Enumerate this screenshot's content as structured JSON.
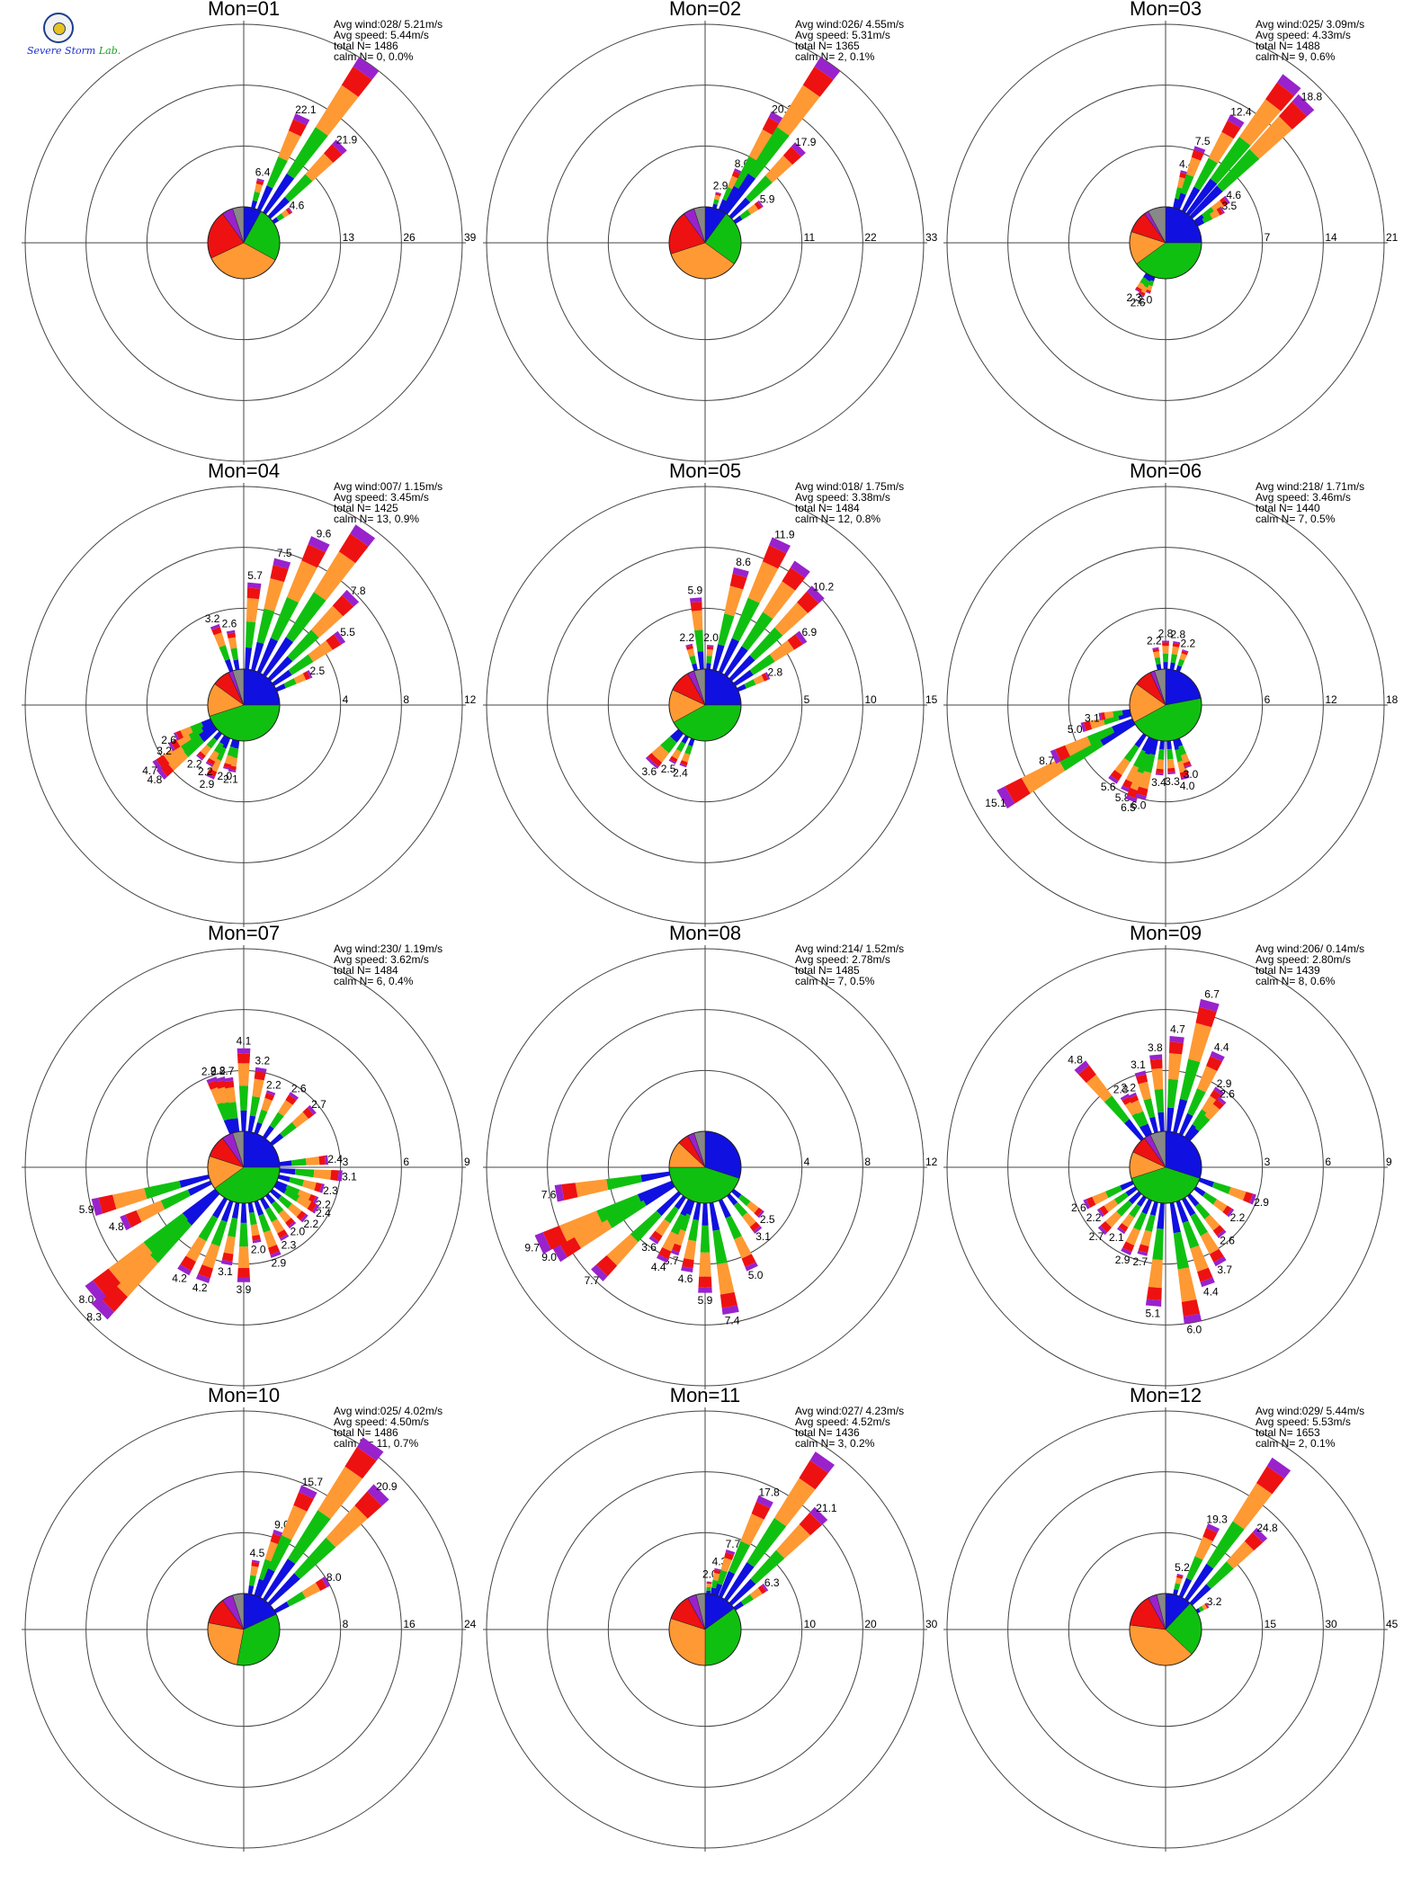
{
  "logo": {
    "text_part1": "Severe",
    "text_part2": "Storm",
    "text_part3": "Lab."
  },
  "colors": {
    "ring": "#444444",
    "axis": "#444444",
    "speed_bins": [
      "#1010e0",
      "#10c010",
      "#ff9933",
      "#ee1111",
      "#9922cc",
      "#888888"
    ]
  },
  "chart_data": [
    {
      "type": "wind_rose",
      "title": "Mon=01",
      "info": [
        "Avg wind:028/ 5.21m/s",
        "Avg speed: 5.44m/s",
        "total N=       1486",
        "calm N=     0,   0.0%"
      ],
      "rings": [
        13,
        26,
        39
      ],
      "bars": [
        [
          15,
          6.4
        ],
        [
          25,
          22.1
        ],
        [
          35,
          39.0
        ],
        [
          45,
          21.9
        ],
        [
          55,
          4.6
        ]
      ],
      "labeled_bins": [
        15,
        25,
        45,
        55
      ],
      "pie": [
        [
          "#1010e0",
          8
        ],
        [
          "#10c010",
          25
        ],
        [
          "#ff9933",
          35
        ],
        [
          "#ee1111",
          22
        ],
        [
          "#9922cc",
          5
        ],
        [
          "#888888",
          5
        ]
      ]
    },
    {
      "type": "wind_rose",
      "title": "Mon=02",
      "info": [
        "Avg wind:026/ 4.55m/s",
        "Avg speed: 5.31m/s",
        "total N=       1365",
        "calm N=     2,   0.1%"
      ],
      "rings": [
        11,
        22,
        33
      ],
      "bars": [
        [
          15,
          2.9
        ],
        [
          25,
          8.0
        ],
        [
          30,
          20.1
        ],
        [
          35,
          33.0
        ],
        [
          45,
          17.9
        ],
        [
          55,
          5.9
        ]
      ],
      "labeled_bins": [
        15,
        25,
        30,
        45,
        55
      ],
      "pie": [
        [
          "#1010e0",
          10
        ],
        [
          "#10c010",
          25
        ],
        [
          "#ff9933",
          35
        ],
        [
          "#ee1111",
          20
        ],
        [
          "#9922cc",
          5
        ],
        [
          "#888888",
          5
        ]
      ]
    },
    {
      "type": "wind_rose",
      "title": "Mon=03",
      "info": [
        "Avg wind:025/ 3.09m/s",
        "Avg speed: 4.33m/s",
        "total N=       1488",
        "calm N=     9,   0.6%"
      ],
      "rings": [
        7,
        14,
        21
      ],
      "bars": [
        [
          15,
          4.4
        ],
        [
          20,
          7.5
        ],
        [
          30,
          12.4
        ],
        [
          38,
          19.5
        ],
        [
          45,
          18.8
        ],
        [
          55,
          4.6
        ],
        [
          60,
          3.5
        ],
        [
          200,
          2.0
        ],
        [
          205,
          2.6
        ],
        [
          210,
          2.3
        ]
      ],
      "labeled_bins": [
        15,
        20,
        30,
        45,
        55,
        60,
        200,
        205,
        210
      ],
      "pie": [
        [
          "#1010e0",
          25
        ],
        [
          "#10c010",
          40
        ],
        [
          "#ff9933",
          15
        ],
        [
          "#ee1111",
          10
        ],
        [
          "#9922cc",
          2
        ],
        [
          "#888888",
          8
        ]
      ]
    },
    {
      "type": "wind_rose",
      "title": "Mon=04",
      "info": [
        "Avg wind:007/ 1.15m/s",
        "Avg speed: 3.45m/s",
        "total N=       1425",
        "calm N=    13,   0.9%"
      ],
      "rings": [
        4,
        8,
        12
      ],
      "bars": [
        [
          340,
          3.2
        ],
        [
          350,
          2.6
        ],
        [
          5,
          5.7
        ],
        [
          15,
          7.5
        ],
        [
          25,
          9.6
        ],
        [
          35,
          11.6
        ],
        [
          45,
          7.8
        ],
        [
          55,
          5.5
        ],
        [
          65,
          2.5
        ],
        [
          190,
          2.1
        ],
        [
          195,
          2.0
        ],
        [
          205,
          2.9
        ],
        [
          210,
          2.2
        ],
        [
          220,
          2.2
        ],
        [
          230,
          4.8
        ],
        [
          235,
          4.7
        ],
        [
          240,
          3.2
        ],
        [
          245,
          2.6
        ]
      ],
      "labeled_bins": [
        340,
        350,
        5,
        15,
        25,
        45,
        55,
        65,
        190,
        195,
        205,
        210,
        220,
        230,
        235,
        240,
        245
      ],
      "pie": [
        [
          "#1010e0",
          25
        ],
        [
          "#10c010",
          45
        ],
        [
          "#ff9933",
          15
        ],
        [
          "#ee1111",
          8
        ],
        [
          "#9922cc",
          2
        ],
        [
          "#888888",
          5
        ]
      ]
    },
    {
      "type": "wind_rose",
      "title": "Mon=05",
      "info": [
        "Avg wind:018/ 1.75m/s",
        "Avg speed: 3.38m/s",
        "total N=       1484",
        "calm N=    12,   0.8%"
      ],
      "rings": [
        5,
        10,
        15
      ],
      "bars": [
        [
          345,
          2.2
        ],
        [
          355,
          5.9
        ],
        [
          5,
          2.0
        ],
        [
          15,
          8.6
        ],
        [
          25,
          11.9
        ],
        [
          35,
          11.0
        ],
        [
          45,
          10.2
        ],
        [
          55,
          6.9
        ],
        [
          65,
          2.8
        ],
        [
          200,
          2.4
        ],
        [
          210,
          2.5
        ],
        [
          220,
          3.6
        ],
        [
          225,
          3.6
        ]
      ],
      "labeled_bins": [
        345,
        355,
        5,
        15,
        25,
        45,
        55,
        65,
        200,
        210,
        220
      ],
      "pie": [
        [
          "#1010e0",
          25
        ],
        [
          "#10c010",
          42
        ],
        [
          "#ff9933",
          15
        ],
        [
          "#ee1111",
          10
        ],
        [
          "#9922cc",
          3
        ],
        [
          "#888888",
          5
        ]
      ]
    },
    {
      "type": "wind_rose",
      "title": "Mon=06",
      "info": [
        "Avg wind:218/ 1.71m/s",
        "Avg speed: 3.46m/s",
        "total N=       1440",
        "calm N=     7,   0.5%"
      ],
      "rings": [
        6,
        12,
        18
      ],
      "bars": [
        [
          350,
          2.2
        ],
        [
          0,
          2.8
        ],
        [
          10,
          2.8
        ],
        [
          20,
          2.2
        ],
        [
          240,
          15.1
        ],
        [
          245,
          8.7
        ],
        [
          255,
          5.0
        ],
        [
          260,
          3.1
        ],
        [
          215,
          5.6
        ],
        [
          205,
          5.8
        ],
        [
          200,
          6.5
        ],
        [
          195,
          6.0
        ],
        [
          185,
          3.4
        ],
        [
          175,
          3.3
        ],
        [
          165,
          4.0
        ],
        [
          160,
          3.0
        ]
      ],
      "labeled_bins": [
        350,
        0,
        10,
        20,
        240,
        245,
        255,
        260,
        215,
        205,
        200,
        195,
        185,
        175,
        165,
        160
      ],
      "pie": [
        [
          "#1010e0",
          22
        ],
        [
          "#10c010",
          45
        ],
        [
          "#ff9933",
          18
        ],
        [
          "#ee1111",
          8
        ],
        [
          "#9922cc",
          2
        ],
        [
          "#888888",
          5
        ]
      ]
    },
    {
      "type": "wind_rose",
      "title": "Mon=07",
      "info": [
        "Avg wind:230/ 1.19m/s",
        "Avg speed: 3.62m/s",
        "total N=       1484",
        "calm N=     6,   0.4%"
      ],
      "rings": [
        3,
        6,
        9
      ],
      "bars": [
        [
          340,
          2.9
        ],
        [
          345,
          2.8
        ],
        [
          350,
          2.7
        ],
        [
          0,
          4.1
        ],
        [
          10,
          3.2
        ],
        [
          20,
          2.2
        ],
        [
          35,
          2.6
        ],
        [
          50,
          2.7
        ],
        [
          85,
          2.4
        ],
        [
          95,
          3.1
        ],
        [
          105,
          2.3
        ],
        [
          115,
          2.2
        ],
        [
          120,
          2.4
        ],
        [
          130,
          2.2
        ],
        [
          140,
          2.0
        ],
        [
          150,
          2.3
        ],
        [
          160,
          2.9
        ],
        [
          170,
          2.0
        ],
        [
          180,
          3.9
        ],
        [
          190,
          3.1
        ],
        [
          200,
          4.2
        ],
        [
          210,
          4.2
        ],
        [
          225,
          8.3
        ],
        [
          230,
          8.0
        ],
        [
          245,
          4.8
        ],
        [
          255,
          5.9
        ]
      ],
      "labeled_bins": [
        340,
        345,
        350,
        0,
        10,
        20,
        35,
        50,
        85,
        95,
        105,
        115,
        120,
        130,
        140,
        150,
        160,
        170,
        180,
        190,
        200,
        210,
        225,
        230,
        245,
        255
      ],
      "pie": [
        [
          "#1010e0",
          25
        ],
        [
          "#10c010",
          40
        ],
        [
          "#ff9933",
          15
        ],
        [
          "#ee1111",
          10
        ],
        [
          "#9922cc",
          5
        ],
        [
          "#888888",
          5
        ]
      ]
    },
    {
      "type": "wind_rose",
      "title": "Mon=08",
      "info": [
        "Avg wind:214/ 1.52m/s",
        "Avg speed: 2.78m/s",
        "total N=       1485",
        "calm N=     7,   0.5%"
      ],
      "rings": [
        4,
        8,
        12
      ],
      "bars": [
        [
          130,
          2.5
        ],
        [
          140,
          3.1
        ],
        [
          155,
          5.0
        ],
        [
          170,
          7.4
        ],
        [
          180,
          5.9
        ],
        [
          190,
          4.6
        ],
        [
          200,
          3.7
        ],
        [
          205,
          4.4
        ],
        [
          215,
          3.6
        ],
        [
          225,
          7.7
        ],
        [
          240,
          9.0
        ],
        [
          245,
          9.7
        ],
        [
          260,
          7.6
        ]
      ],
      "labeled_bins": [
        130,
        140,
        155,
        170,
        180,
        190,
        200,
        205,
        215,
        225,
        240,
        245,
        260
      ],
      "pie": [
        [
          "#1010e0",
          30
        ],
        [
          "#10c010",
          45
        ],
        [
          "#ff9933",
          12
        ],
        [
          "#ee1111",
          5
        ],
        [
          "#9922cc",
          3
        ],
        [
          "#888888",
          5
        ]
      ]
    },
    {
      "type": "wind_rose",
      "title": "Mon=09",
      "info": [
        "Avg wind:206/ 0.14m/s",
        "Avg speed: 2.80m/s",
        "total N=       1439",
        "calm N=     8,   0.6%"
      ],
      "rings": [
        3,
        6,
        9
      ],
      "bars": [
        [
          320,
          4.8
        ],
        [
          330,
          2.3
        ],
        [
          335,
          2.2
        ],
        [
          345,
          3.1
        ],
        [
          355,
          3.8
        ],
        [
          5,
          4.7
        ],
        [
          15,
          6.7
        ],
        [
          25,
          4.4
        ],
        [
          35,
          2.9
        ],
        [
          40,
          2.6
        ],
        [
          110,
          2.9
        ],
        [
          125,
          2.2
        ],
        [
          140,
          2.6
        ],
        [
          150,
          3.7
        ],
        [
          160,
          4.4
        ],
        [
          170,
          6.0
        ],
        [
          185,
          5.1
        ],
        [
          195,
          2.7
        ],
        [
          205,
          2.9
        ],
        [
          215,
          2.1
        ],
        [
          225,
          2.7
        ],
        [
          235,
          2.2
        ],
        [
          245,
          2.6
        ]
      ],
      "labeled_bins": [
        320,
        330,
        335,
        345,
        355,
        5,
        15,
        25,
        35,
        40,
        110,
        125,
        140,
        150,
        160,
        170,
        185,
        195,
        205,
        215,
        225,
        235,
        245
      ],
      "pie": [
        [
          "#1010e0",
          30
        ],
        [
          "#10c010",
          40
        ],
        [
          "#ff9933",
          12
        ],
        [
          "#ee1111",
          8
        ],
        [
          "#9922cc",
          3
        ],
        [
          "#888888",
          7
        ]
      ]
    },
    {
      "type": "wind_rose",
      "title": "Mon=10",
      "info": [
        "Avg wind:025/ 4.02m/s",
        "Avg speed: 4.50m/s",
        "total N=       1486",
        "calm N=    11,   0.7%"
      ],
      "rings": [
        8,
        16,
        24
      ],
      "bars": [
        [
          10,
          4.5
        ],
        [
          20,
          9.0
        ],
        [
          25,
          15.7
        ],
        [
          35,
          25.0
        ],
        [
          45,
          20.9
        ],
        [
          60,
          8.0
        ]
      ],
      "labeled_bins": [
        10,
        20,
        25,
        45,
        60
      ],
      "pie": [
        [
          "#1010e0",
          18
        ],
        [
          "#10c010",
          35
        ],
        [
          "#ff9933",
          25
        ],
        [
          "#ee1111",
          12
        ],
        [
          "#9922cc",
          5
        ],
        [
          "#888888",
          5
        ]
      ]
    },
    {
      "type": "wind_rose",
      "title": "Mon=11",
      "info": [
        "Avg wind:027/ 4.23m/s",
        "Avg speed: 4.52m/s",
        "total N=       1436",
        "calm N=     3,   0.2%"
      ],
      "rings": [
        10,
        20,
        30
      ],
      "bars": [
        [
          5,
          2.0
        ],
        [
          12,
          4.3
        ],
        [
          18,
          7.7
        ],
        [
          25,
          17.8
        ],
        [
          35,
          28.5
        ],
        [
          45,
          21.1
        ],
        [
          55,
          6.3
        ]
      ],
      "labeled_bins": [
        5,
        12,
        18,
        25,
        45,
        55
      ],
      "pie": [
        [
          "#1010e0",
          15
        ],
        [
          "#10c010",
          35
        ],
        [
          "#ff9933",
          30
        ],
        [
          "#ee1111",
          12
        ],
        [
          "#9922cc",
          4
        ],
        [
          "#888888",
          4
        ]
      ]
    },
    {
      "type": "wind_rose",
      "title": "Mon=12",
      "info": [
        "Avg wind:029/ 5.44m/s",
        "Avg speed: 5.53m/s",
        "total N=       1653",
        "calm N=     2,   0.1%"
      ],
      "rings": [
        15,
        30,
        45
      ],
      "bars": [
        [
          15,
          5.2
        ],
        [
          25,
          19.3
        ],
        [
          35,
          41.0
        ],
        [
          45,
          24.8
        ],
        [
          60,
          3.2
        ]
      ],
      "labeled_bins": [
        15,
        25,
        45,
        60
      ],
      "pie": [
        [
          "#1010e0",
          12
        ],
        [
          "#10c010",
          25
        ],
        [
          "#ff9933",
          40
        ],
        [
          "#ee1111",
          15
        ],
        [
          "#9922cc",
          4
        ],
        [
          "#888888",
          4
        ]
      ]
    }
  ]
}
